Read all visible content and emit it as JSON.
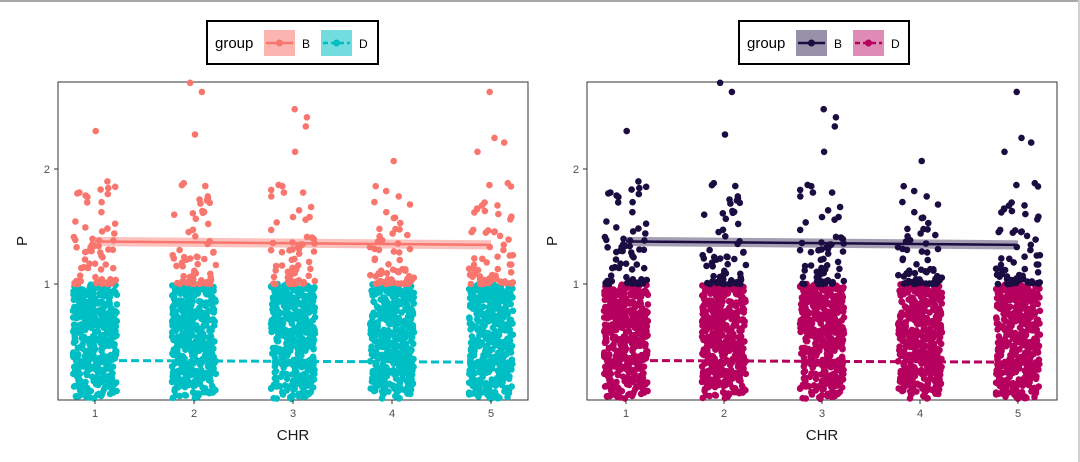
{
  "chart_data": [
    {
      "type": "scatter",
      "title": "",
      "xlabel": "CHR",
      "ylabel": "P",
      "x_categories": [
        "1",
        "2",
        "3",
        "4",
        "5"
      ],
      "y_ticks": [
        "1",
        "2"
      ],
      "ylim": [
        0,
        2.75
      ],
      "legend": {
        "title": "group",
        "placement": "top",
        "entries": [
          {
            "label": "B",
            "color": "#F8766D",
            "line": "solid"
          },
          {
            "label": "D",
            "color": "#00BFC4",
            "line": "dashed"
          }
        ]
      },
      "series": [
        {
          "name": "B",
          "color": "#F8766D",
          "point_range": [
            1.0,
            2.75
          ],
          "outliers": [
            [
              1,
              2.33
            ],
            [
              2,
              2.75
            ],
            [
              2,
              2.67
            ],
            [
              2,
              2.3
            ],
            [
              3,
              2.52
            ],
            [
              3,
              2.45
            ],
            [
              3,
              2.37
            ],
            [
              3,
              2.15
            ],
            [
              4,
              2.07
            ],
            [
              5,
              2.67
            ],
            [
              5,
              2.27
            ],
            [
              5,
              2.23
            ],
            [
              5,
              2.15
            ]
          ],
          "trend_line": {
            "x": [
              1,
              5
            ],
            "y": [
              1.37,
              1.34
            ],
            "band": 0.04
          }
        },
        {
          "name": "D",
          "color": "#00BFC4",
          "point_range": [
            0.0,
            1.0
          ],
          "trend_line": {
            "x": [
              1,
              5
            ],
            "y": [
              0.335,
              0.32
            ],
            "band": 0.01
          }
        }
      ]
    },
    {
      "type": "scatter",
      "title": "",
      "xlabel": "CHR",
      "ylabel": "P",
      "x_categories": [
        "1",
        "2",
        "3",
        "4",
        "5"
      ],
      "y_ticks": [
        "1",
        "2"
      ],
      "ylim": [
        0,
        2.75
      ],
      "legend": {
        "title": "group",
        "placement": "top",
        "entries": [
          {
            "label": "B",
            "color": "#1B0C42",
            "line": "solid"
          },
          {
            "label": "D",
            "color": "#B5005E",
            "line": "dashed"
          }
        ]
      },
      "series": [
        {
          "name": "B",
          "color": "#1B0C42",
          "point_range": [
            1.0,
            2.75
          ],
          "outliers": [
            [
              1,
              2.33
            ],
            [
              2,
              2.75
            ],
            [
              2,
              2.67
            ],
            [
              2,
              2.3
            ],
            [
              3,
              2.52
            ],
            [
              3,
              2.45
            ],
            [
              3,
              2.37
            ],
            [
              3,
              2.15
            ],
            [
              4,
              2.07
            ],
            [
              5,
              2.67
            ],
            [
              5,
              2.27
            ],
            [
              5,
              2.23
            ],
            [
              5,
              2.15
            ]
          ],
          "trend_line": {
            "x": [
              1,
              5
            ],
            "y": [
              1.37,
              1.34
            ],
            "band": 0.04
          }
        },
        {
          "name": "D",
          "color": "#B5005E",
          "point_range": [
            0.0,
            1.0
          ],
          "trend_line": {
            "x": [
              1,
              5
            ],
            "y": [
              0.335,
              0.32
            ],
            "band": 0.01
          }
        }
      ]
    }
  ]
}
